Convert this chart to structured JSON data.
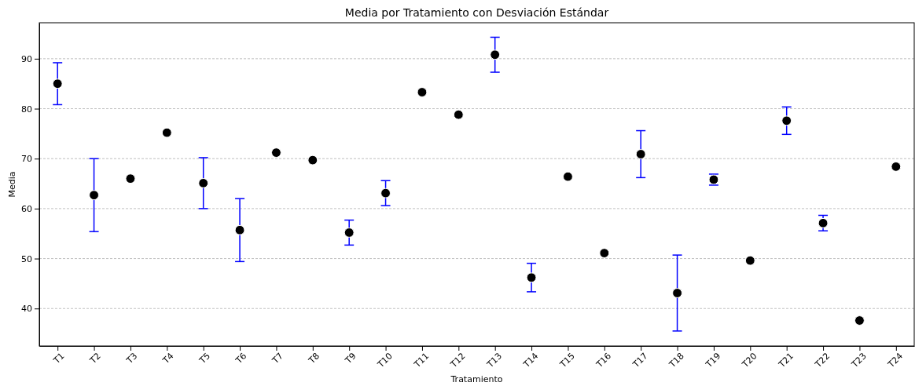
{
  "chart_data": {
    "type": "scatter",
    "title": "Media por Tratamiento con Desviación Estándar",
    "xlabel": "Tratamiento",
    "ylabel": "Media",
    "categories": [
      "T1",
      "T2",
      "T3",
      "T4",
      "T5",
      "T6",
      "T7",
      "T8",
      "T9",
      "T10",
      "T11",
      "T12",
      "T13",
      "T14",
      "T15",
      "T16",
      "T17",
      "T18",
      "T19",
      "T20",
      "T21",
      "T22",
      "T23",
      "T24"
    ],
    "series": [
      {
        "color": "#000000",
        "values": [
          85.0,
          62.7,
          66.0,
          75.2,
          65.1,
          55.7,
          71.2,
          69.7,
          55.2,
          63.1,
          83.3,
          78.8,
          90.8,
          46.2,
          66.4,
          51.1,
          70.9,
          43.1,
          65.8,
          49.6,
          77.6,
          57.1,
          37.6,
          68.4
        ],
        "errors": [
          4.2,
          7.3,
          null,
          null,
          5.1,
          6.3,
          null,
          null,
          2.5,
          2.5,
          null,
          null,
          3.5,
          2.85,
          null,
          null,
          4.7,
          7.6,
          1.1,
          null,
          2.75,
          1.55,
          null,
          null
        ]
      }
    ],
    "ylim": [
      32.5,
      97.2
    ],
    "yticks": [
      40,
      50,
      60,
      70,
      80,
      90
    ],
    "grid": "y",
    "marker": "circle"
  }
}
